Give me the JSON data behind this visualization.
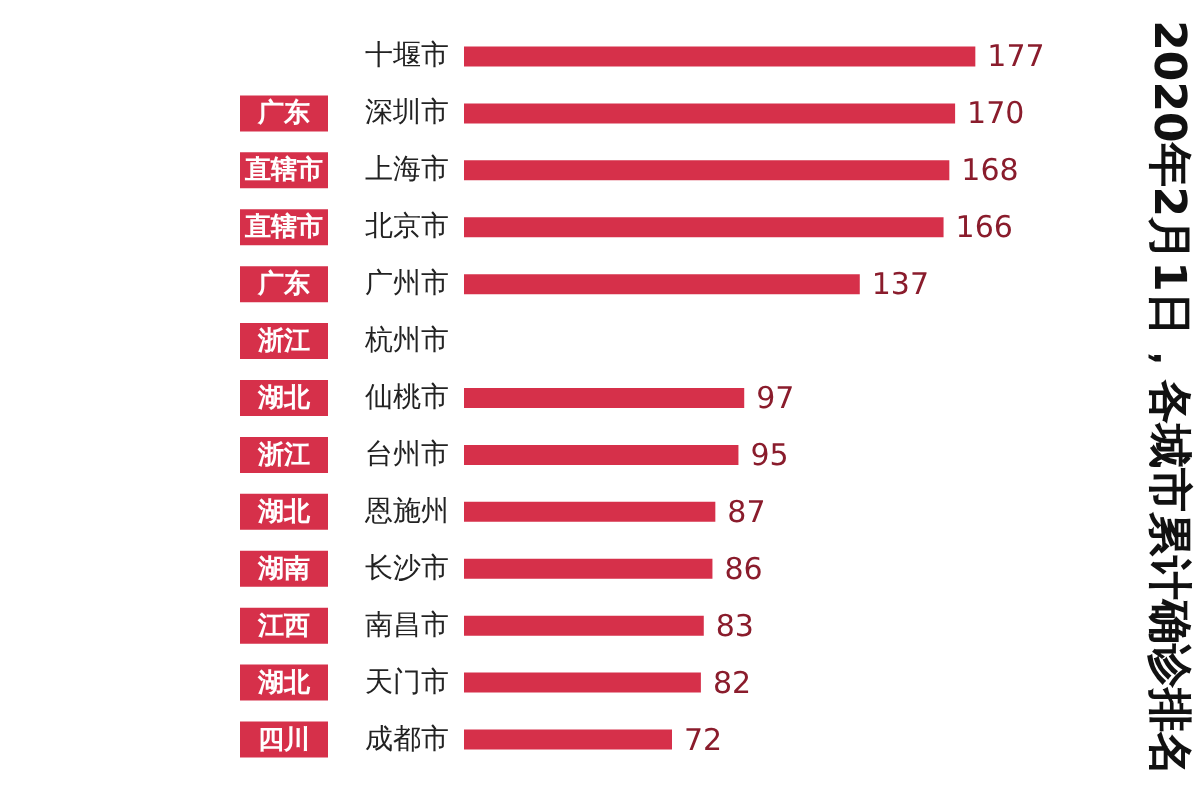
{
  "chart_data": {
    "type": "bar",
    "orientation": "horizontal",
    "title": "2020年2月1日，各城市累计确诊排名",
    "categories": [
      "十堰市",
      "深圳市",
      "上海市",
      "北京市",
      "广州市",
      "杭州市",
      "仙桃市",
      "台州市",
      "恩施州",
      "长沙市",
      "南昌市",
      "天门市",
      "成都市"
    ],
    "values": [
      177,
      170,
      168,
      166,
      137,
      null,
      97,
      95,
      87,
      86,
      83,
      82,
      72
    ],
    "color": "#d6304a",
    "data_labels": true,
    "annotations": [
      "广东",
      "直辖市",
      "直辖市",
      "广东",
      "浙江",
      "湖北",
      "浙江",
      "湖北",
      "湖南",
      "江西",
      "湖北",
      "四川"
    ]
  }
}
